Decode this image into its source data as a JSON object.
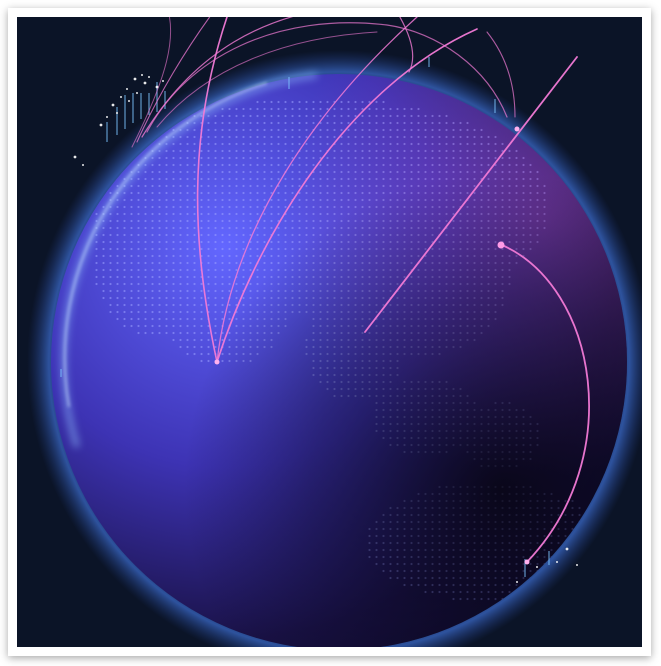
{
  "image": {
    "subject": "globe-network",
    "colors": {
      "background": "#0b1427",
      "globe_light": "#5a5cf0",
      "globe_mid": "#3a2fa8",
      "globe_dark": "#120d35",
      "rim_glow": "#7fb0ff",
      "land_dots": "#8b8ff5",
      "arc": "#f06bd0",
      "frame": "#ffffff"
    }
  }
}
